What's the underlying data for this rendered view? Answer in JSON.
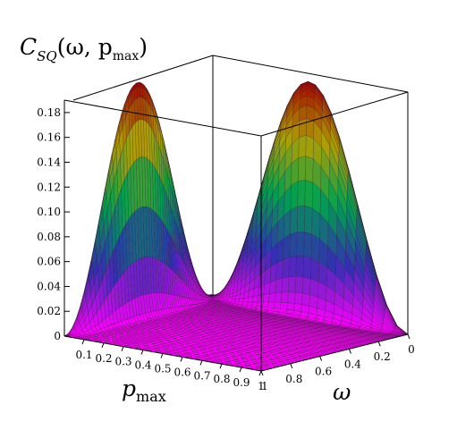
{
  "chart_data": {
    "type": "surface3d",
    "title": "C_SQ(ω, p_max)",
    "title_parts": {
      "main": "C",
      "sub": "SQ",
      "args": "(ω, p",
      "args_sub": "max",
      "close": ")"
    },
    "z_axis": {
      "ticks": [
        "0",
        "0.02",
        "0.04",
        "0.06",
        "0.08",
        "0.10",
        "0.12",
        "0.14",
        "0.16",
        "0.18"
      ],
      "range": [
        0,
        0.19
      ]
    },
    "p_axis": {
      "label_main": "p",
      "label_sub": "max",
      "ticks": [
        "0.1",
        "0.2",
        "0.3",
        "0.4",
        "0.5",
        "0.6",
        "0.7",
        "0.8",
        "0.9",
        "1"
      ],
      "range": [
        0,
        1
      ]
    },
    "omega_axis": {
      "label": "ω",
      "ticks": [
        "0",
        "0.2",
        "0.4",
        "0.6",
        "0.8",
        "1"
      ],
      "range": [
        0,
        1
      ]
    },
    "peak_value": 0.19,
    "colormap": [
      "#ff00ff",
      "#3030b0",
      "#00a050",
      "#b0a000",
      "#a00000"
    ]
  }
}
